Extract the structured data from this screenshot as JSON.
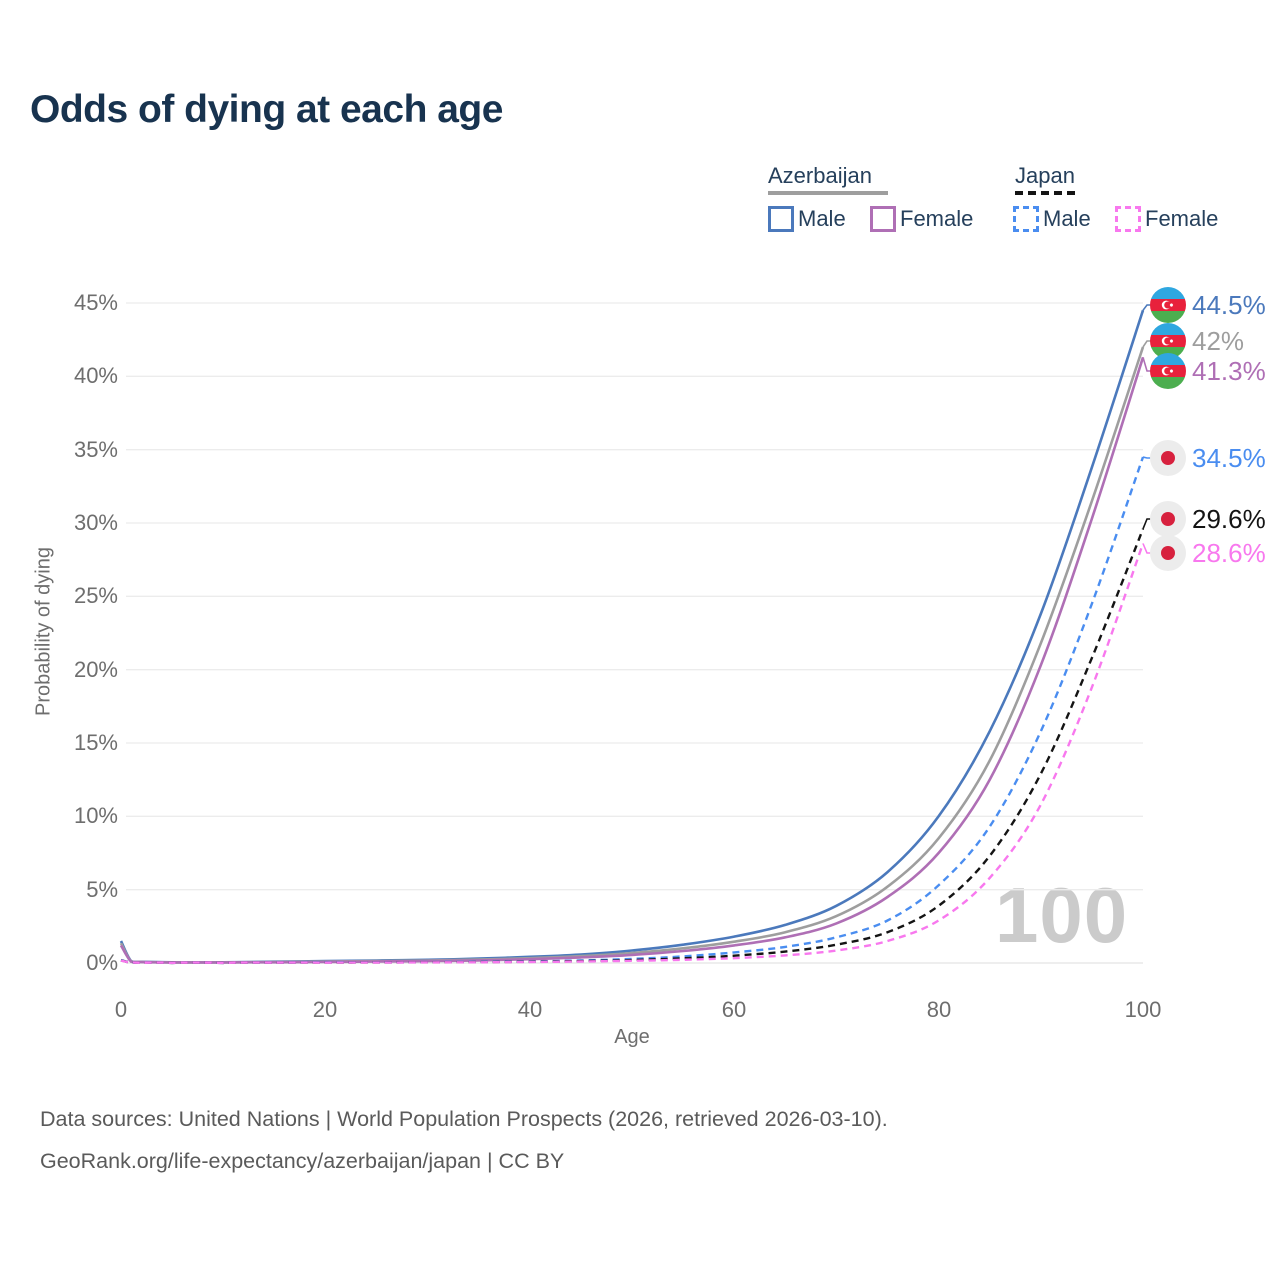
{
  "title": "Odds of dying at each age",
  "legend": {
    "groups": [
      {
        "label": "Azerbaijan",
        "line_style": "solid",
        "line_color": "#9E9E9E",
        "items": [
          {
            "label": "Male",
            "color": "#4B79BC",
            "style": "solid"
          },
          {
            "label": "Female",
            "color": "#AF6FB5",
            "style": "solid"
          }
        ]
      },
      {
        "label": "Japan",
        "line_style": "dashed",
        "line_color": "#141414",
        "items": [
          {
            "label": "Male",
            "color": "#4A8DF0",
            "style": "dashed"
          },
          {
            "label": "Female",
            "color": "#F878EE",
            "style": "dashed"
          }
        ]
      }
    ]
  },
  "chart_data": {
    "type": "line",
    "title": "Odds of dying at each age",
    "xlabel": "Age",
    "ylabel": "Probability of dying",
    "xlim": [
      0,
      100
    ],
    "ylim": [
      0,
      45
    ],
    "grid": "horizontal",
    "legend_position": "top-right",
    "watermark": "100",
    "xtick_labels": [
      "0",
      "20",
      "40",
      "60",
      "80",
      "100"
    ],
    "ytick_labels": [
      "45%",
      "40%",
      "35%",
      "30%",
      "25%",
      "20%",
      "15%",
      "10%",
      "5%",
      "0%"
    ],
    "x": [
      0,
      1,
      2,
      5,
      10,
      15,
      20,
      25,
      30,
      35,
      40,
      45,
      50,
      55,
      60,
      65,
      70,
      75,
      80,
      85,
      90,
      95,
      100
    ],
    "series": [
      {
        "name": "Azerbaijan Male",
        "country": "Azerbaijan",
        "sex": "Male",
        "color": "#4B79BC",
        "dash": "solid",
        "flag": "azerbaijan",
        "end_value": 44.5,
        "end_label": "44.5%",
        "values": [
          1.5,
          0.12,
          0.08,
          0.05,
          0.05,
          0.09,
          0.13,
          0.17,
          0.22,
          0.3,
          0.42,
          0.58,
          0.85,
          1.25,
          1.8,
          2.6,
          3.9,
          6.2,
          10.0,
          15.8,
          23.8,
          33.8,
          44.5
        ]
      },
      {
        "name": "Azerbaijan",
        "country": "Azerbaijan",
        "sex": "Both",
        "color": "#9E9E9E",
        "dash": "solid",
        "flag": "azerbaijan",
        "end_value": 42,
        "end_label": "42%",
        "values": [
          1.35,
          0.1,
          0.07,
          0.04,
          0.04,
          0.07,
          0.1,
          0.13,
          0.17,
          0.24,
          0.33,
          0.47,
          0.68,
          1.0,
          1.45,
          2.1,
          3.2,
          5.2,
          8.5,
          13.8,
          21.8,
          31.5,
          42.0
        ]
      },
      {
        "name": "Azerbaijan Female",
        "country": "Azerbaijan",
        "sex": "Female",
        "color": "#AF6FB5",
        "dash": "solid",
        "flag": "azerbaijan",
        "end_value": 41.3,
        "end_label": "41.3%",
        "values": [
          1.2,
          0.09,
          0.06,
          0.04,
          0.04,
          0.05,
          0.07,
          0.1,
          0.13,
          0.18,
          0.26,
          0.38,
          0.55,
          0.82,
          1.2,
          1.75,
          2.7,
          4.5,
          7.5,
          12.5,
          20.3,
          30.3,
          41.3
        ]
      },
      {
        "name": "Japan Male",
        "country": "Japan",
        "sex": "Male",
        "color": "#4A8DF0",
        "dash": "dashed",
        "flag": "japan",
        "end_value": 34.5,
        "end_label": "34.5%",
        "values": [
          0.2,
          0.03,
          0.02,
          0.01,
          0.01,
          0.03,
          0.05,
          0.05,
          0.06,
          0.08,
          0.11,
          0.17,
          0.28,
          0.45,
          0.72,
          1.1,
          1.75,
          2.9,
          5.3,
          9.3,
          15.8,
          24.5,
          34.5
        ]
      },
      {
        "name": "Japan",
        "country": "Japan",
        "sex": "Both",
        "color": "#141414",
        "dash": "dashed",
        "flag": "japan",
        "end_value": 29.6,
        "end_label": "29.6%",
        "values": [
          0.18,
          0.02,
          0.015,
          0.01,
          0.01,
          0.02,
          0.03,
          0.04,
          0.05,
          0.06,
          0.09,
          0.13,
          0.2,
          0.32,
          0.5,
          0.78,
          1.25,
          2.1,
          3.9,
          7.3,
          12.9,
          20.8,
          29.6
        ]
      },
      {
        "name": "Japan Female",
        "country": "Japan",
        "sex": "Female",
        "color": "#F878EE",
        "dash": "dashed",
        "flag": "japan",
        "end_value": 28.6,
        "end_label": "28.6%",
        "values": [
          0.16,
          0.02,
          0.01,
          0.01,
          0.01,
          0.02,
          0.02,
          0.03,
          0.04,
          0.05,
          0.07,
          0.1,
          0.15,
          0.22,
          0.33,
          0.52,
          0.85,
          1.5,
          2.9,
          5.8,
          10.8,
          18.8,
          28.6
        ]
      }
    ]
  },
  "footer": {
    "line1": "Data sources: United Nations | World Population Prospects (2026, retrieved 2026-03-10).",
    "line2": "GeoRank.org/life-expectancy/azerbaijan/japan | CC BY"
  }
}
